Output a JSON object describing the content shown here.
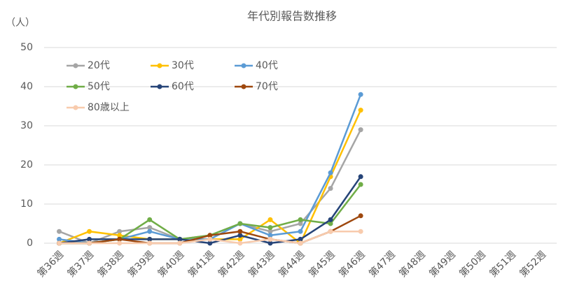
{
  "chart_data": {
    "type": "line",
    "title": "年代別報告数推移",
    "y_label": "（人）",
    "categories": [
      "第36週",
      "第37週",
      "第38週",
      "第39週",
      "第40週",
      "第41週",
      "第42週",
      "第43週",
      "第44週",
      "第45週",
      "第46週",
      "第47週",
      "第48週",
      "第49週",
      "第50週",
      "第51週",
      "第52週"
    ],
    "series": [
      {
        "name": "20代",
        "color": "#a5a5a5",
        "values": [
          3,
          0,
          3,
          4,
          1,
          2,
          5,
          3,
          5,
          14,
          29,
          null,
          null,
          null,
          null,
          null,
          null
        ]
      },
      {
        "name": "30代",
        "color": "#ffc000",
        "values": [
          0,
          3,
          2,
          1,
          1,
          1,
          1,
          6,
          0,
          17,
          34,
          null,
          null,
          null,
          null,
          null,
          null
        ]
      },
      {
        "name": "40代",
        "color": "#5b9bd5",
        "values": [
          1,
          0,
          1,
          3,
          1,
          1,
          5,
          2,
          3,
          18,
          38,
          null,
          null,
          null,
          null,
          null,
          null
        ]
      },
      {
        "name": "50代",
        "color": "#70ad47",
        "values": [
          0,
          0,
          1,
          6,
          1,
          2,
          5,
          4,
          6,
          5,
          15,
          null,
          null,
          null,
          null,
          null,
          null
        ]
      },
      {
        "name": "60代",
        "color": "#264478",
        "values": [
          0,
          1,
          1,
          1,
          1,
          0,
          2,
          0,
          1,
          6,
          17,
          null,
          null,
          null,
          null,
          null,
          null
        ]
      },
      {
        "name": "70代",
        "color": "#9e480e",
        "values": [
          0,
          0,
          1,
          0,
          0,
          2,
          3,
          1,
          0,
          3,
          7,
          null,
          null,
          null,
          null,
          null,
          null
        ]
      },
      {
        "name": "80歳以上",
        "color": "#f8cbad",
        "values": [
          0,
          0,
          0,
          0,
          0,
          1,
          0,
          1,
          0,
          3,
          3,
          null,
          null,
          null,
          null,
          null,
          null
        ]
      }
    ],
    "ylim": [
      0,
      50
    ],
    "yticks": [
      0,
      10,
      20,
      30,
      40,
      50
    ],
    "grid": true,
    "legend": "upper left"
  }
}
